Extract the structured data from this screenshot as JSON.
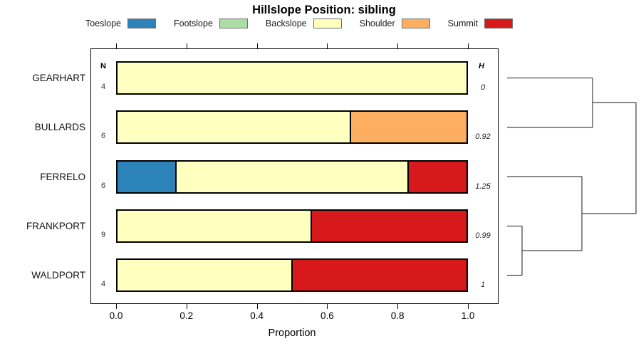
{
  "chart_data": {
    "type": "bar",
    "orientation": "horizontal",
    "stacked": true,
    "title": "Hillslope Position: sibling",
    "xlabel": "Proportion",
    "xlim": [
      0,
      1
    ],
    "x_tick_labels": [
      "0.0",
      "0.2",
      "0.4",
      "0.6",
      "0.8",
      "1.0"
    ],
    "x_tick_values": [
      0,
      0.2,
      0.4,
      0.6,
      0.8,
      1.0
    ],
    "grid": false,
    "legend_position": "top",
    "legend": [
      {
        "label": "Toeslope",
        "color": "#2B83BA"
      },
      {
        "label": "Footslope",
        "color": "#ABDDA4"
      },
      {
        "label": "Backslope",
        "color": "#FFFFBF"
      },
      {
        "label": "Shoulder",
        "color": "#FDAE61"
      },
      {
        "label": "Summit",
        "color": "#D7191C"
      }
    ],
    "categories": [
      "GEARHART",
      "BULLARDS",
      "FERRELO",
      "FRANKPORT",
      "WALDPORT"
    ],
    "series": [
      {
        "name": "Toeslope",
        "values": [
          0,
          0,
          0.167,
          0,
          0
        ]
      },
      {
        "name": "Footslope",
        "values": [
          0,
          0,
          0,
          0,
          0
        ]
      },
      {
        "name": "Backslope",
        "values": [
          1.0,
          0.667,
          0.667,
          0.556,
          0.5
        ]
      },
      {
        "name": "Shoulder",
        "values": [
          0,
          0.333,
          0,
          0,
          0
        ]
      },
      {
        "name": "Summit",
        "values": [
          0,
          0,
          0.167,
          0.444,
          0.5
        ]
      }
    ],
    "n_column": {
      "header": "N",
      "values": [
        "4",
        "6",
        "6",
        "9",
        "4"
      ]
    },
    "h_column": {
      "header": "H",
      "values": [
        "0",
        "0.92",
        "1.25",
        "0.99",
        "1"
      ]
    },
    "dendrogram": {
      "side": "right",
      "tree": {
        "height": 1.0,
        "children": [
          {
            "height": 0.663,
            "children": [
              {
                "leaf": "GEARHART"
              },
              {
                "leaf": "BULLARDS"
              }
            ]
          },
          {
            "height": 0.58,
            "children": [
              {
                "leaf": "FERRELO"
              },
              {
                "height": 0.116,
                "children": [
                  {
                    "leaf": "FRANKPORT"
                  },
                  {
                    "leaf": "WALDPORT"
                  }
                ]
              }
            ]
          }
        ]
      }
    }
  },
  "colors": {
    "bar_border": "#000000",
    "axis": "#000000",
    "dendrogram_line": "#1a1a1a",
    "swatch_border": "#707070"
  }
}
